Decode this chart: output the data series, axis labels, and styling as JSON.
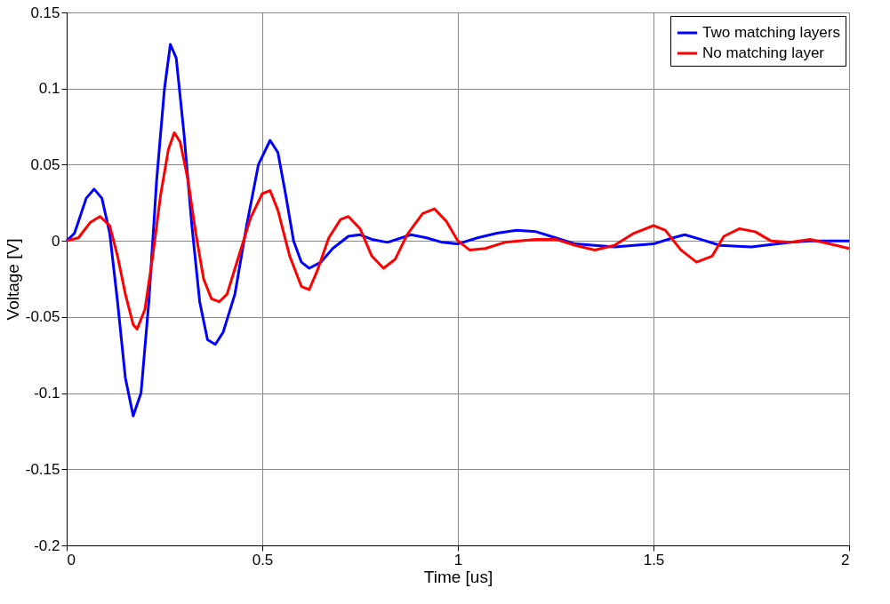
{
  "chart_data": {
    "type": "line",
    "xlabel": "Time [us]",
    "ylabel": "Voltage [V]",
    "xlim": [
      0,
      2
    ],
    "ylim": [
      -0.2,
      0.15
    ],
    "xticks": [
      0,
      0.5,
      1,
      1.5,
      2
    ],
    "yticks": [
      -0.2,
      -0.15,
      -0.1,
      -0.05,
      0,
      0.05,
      0.1,
      0.15
    ],
    "grid": true,
    "legend": "top right",
    "marker": "none",
    "line_style": "solid",
    "series": [
      {
        "name": "Two matching layers",
        "color": "#0000ff",
        "x": [
          0,
          0.02,
          0.05,
          0.07,
          0.09,
          0.11,
          0.13,
          0.15,
          0.17,
          0.19,
          0.21,
          0.23,
          0.25,
          0.265,
          0.28,
          0.3,
          0.32,
          0.34,
          0.36,
          0.38,
          0.4,
          0.43,
          0.46,
          0.49,
          0.52,
          0.54,
          0.56,
          0.58,
          0.6,
          0.62,
          0.65,
          0.68,
          0.72,
          0.75,
          0.78,
          0.82,
          0.88,
          0.92,
          0.96,
          1.0,
          1.05,
          1.1,
          1.15,
          1.2,
          1.25,
          1.3,
          1.4,
          1.5,
          1.55,
          1.58,
          1.62,
          1.67,
          1.75,
          1.85,
          1.9,
          2.0
        ],
        "values": [
          0,
          0.005,
          0.028,
          0.034,
          0.028,
          0.005,
          -0.04,
          -0.09,
          -0.115,
          -0.1,
          -0.04,
          0.04,
          0.1,
          0.129,
          0.12,
          0.07,
          0.01,
          -0.04,
          -0.065,
          -0.068,
          -0.06,
          -0.035,
          0.01,
          0.05,
          0.066,
          0.058,
          0.03,
          0.0,
          -0.014,
          -0.018,
          -0.014,
          -0.005,
          0.003,
          0.004,
          0.001,
          -0.001,
          0.004,
          0.002,
          -0.001,
          -0.002,
          0.002,
          0.005,
          0.007,
          0.006,
          0.002,
          -0.002,
          -0.004,
          -0.002,
          0.002,
          0.004,
          0.001,
          -0.003,
          -0.004,
          -0.001,
          0.0,
          0.0
        ]
      },
      {
        "name": "No matching layer",
        "color": "#ff0000",
        "x": [
          0,
          0.03,
          0.06,
          0.085,
          0.11,
          0.13,
          0.15,
          0.17,
          0.18,
          0.2,
          0.22,
          0.24,
          0.26,
          0.275,
          0.29,
          0.31,
          0.33,
          0.35,
          0.37,
          0.39,
          0.41,
          0.44,
          0.47,
          0.5,
          0.52,
          0.54,
          0.57,
          0.6,
          0.62,
          0.64,
          0.67,
          0.7,
          0.72,
          0.75,
          0.78,
          0.81,
          0.84,
          0.87,
          0.91,
          0.94,
          0.97,
          1.0,
          1.03,
          1.07,
          1.12,
          1.2,
          1.25,
          1.3,
          1.35,
          1.4,
          1.45,
          1.5,
          1.53,
          1.57,
          1.61,
          1.65,
          1.68,
          1.72,
          1.76,
          1.8,
          1.85,
          1.9,
          1.95,
          2.0
        ],
        "values": [
          0,
          0.002,
          0.012,
          0.016,
          0.01,
          -0.01,
          -0.035,
          -0.055,
          -0.058,
          -0.045,
          -0.01,
          0.03,
          0.06,
          0.071,
          0.065,
          0.04,
          0.005,
          -0.025,
          -0.038,
          -0.04,
          -0.035,
          -0.01,
          0.015,
          0.031,
          0.033,
          0.02,
          -0.01,
          -0.03,
          -0.032,
          -0.02,
          0.002,
          0.014,
          0.016,
          0.008,
          -0.01,
          -0.018,
          -0.012,
          0.004,
          0.018,
          0.021,
          0.013,
          0.0,
          -0.006,
          -0.005,
          -0.001,
          0.001,
          0.001,
          -0.003,
          -0.006,
          -0.003,
          0.005,
          0.01,
          0.007,
          -0.006,
          -0.014,
          -0.01,
          0.003,
          0.008,
          0.006,
          0.0,
          -0.001,
          0.001,
          -0.002,
          -0.005
        ]
      }
    ]
  }
}
